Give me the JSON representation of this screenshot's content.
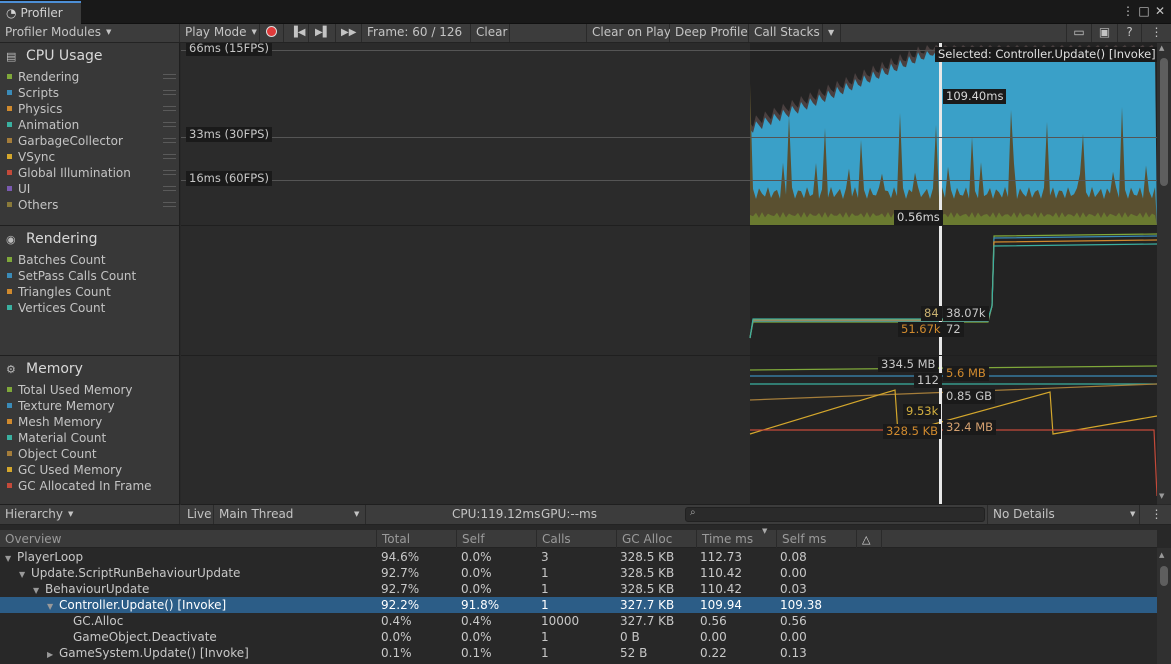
{
  "window": {
    "tab_title": "Profiler"
  },
  "toolbar": {
    "modules": "Profiler Modules",
    "play_mode": "Play Mode",
    "frame": "Frame: 60 / 126",
    "clear": "Clear",
    "clear_on_play": "Clear on Play",
    "deep_profile": "Deep Profile",
    "call_stacks": "Call Stacks"
  },
  "cpu": {
    "title": "CPU Usage",
    "legend": [
      {
        "label": "Rendering",
        "color": "#7fa83a"
      },
      {
        "label": "Scripts",
        "color": "#3a8bb8"
      },
      {
        "label": "Physics",
        "color": "#d08a2e"
      },
      {
        "label": "Animation",
        "color": "#3ab0a0"
      },
      {
        "label": "GarbageCollector",
        "color": "#a57d3a"
      },
      {
        "label": "VSync",
        "color": "#d4a72c"
      },
      {
        "label": "Global Illumination",
        "color": "#c44a3a"
      },
      {
        "label": "UI",
        "color": "#7a5ab0"
      },
      {
        "label": "Others",
        "color": "#8a7a3a"
      }
    ],
    "guides": [
      "66ms (15FPS)",
      "33ms (30FPS)",
      "16ms (60FPS)"
    ],
    "selected": "Selected: Controller.Update() [Invoke]",
    "value_top": "109.40ms",
    "value_bottom": "0.56ms"
  },
  "rendering": {
    "title": "Rendering",
    "legend": [
      {
        "label": "Batches Count",
        "color": "#7fa83a"
      },
      {
        "label": "SetPass Calls Count",
        "color": "#3a8bb8"
      },
      {
        "label": "Triangles Count",
        "color": "#d08a2e"
      },
      {
        "label": "Vertices Count",
        "color": "#3ab0a0"
      }
    ],
    "values": [
      "84",
      "51.67k",
      "38.07k",
      "72"
    ]
  },
  "memory": {
    "title": "Memory",
    "legend": [
      {
        "label": "Total Used Memory",
        "color": "#7fa83a"
      },
      {
        "label": "Texture Memory",
        "color": "#3a8bb8"
      },
      {
        "label": "Mesh Memory",
        "color": "#d08a2e"
      },
      {
        "label": "Material Count",
        "color": "#3ab0a0"
      },
      {
        "label": "Object Count",
        "color": "#a57d3a"
      },
      {
        "label": "GC Used Memory",
        "color": "#d4a72c"
      },
      {
        "label": "GC Allocated In Frame",
        "color": "#c44a3a"
      }
    ],
    "values": [
      "334.5 MB",
      "112",
      "5.6 MB",
      "0.85 GB",
      "9.53k",
      "328.5 KB",
      "32.4 MB"
    ]
  },
  "hierarchy_bar": {
    "view": "Hierarchy",
    "live": "Live",
    "thread": "Main Thread",
    "cpu": "CPU:119.12ms",
    "gpu": "GPU:--ms",
    "details": "No Details"
  },
  "columns": [
    "Overview",
    "Total",
    "Self",
    "Calls",
    "GC Alloc",
    "Time ms",
    "Self ms"
  ],
  "rows": [
    {
      "name": "PlayerLoop",
      "indent": 0,
      "tri": "▼",
      "total": "94.6%",
      "self": "0.0%",
      "calls": "3",
      "gc": "328.5 KB",
      "time": "112.73",
      "selfms": "0.08"
    },
    {
      "name": "Update.ScriptRunBehaviourUpdate",
      "indent": 1,
      "tri": "▼",
      "total": "92.7%",
      "self": "0.0%",
      "calls": "1",
      "gc": "328.5 KB",
      "time": "110.42",
      "selfms": "0.00"
    },
    {
      "name": "BehaviourUpdate",
      "indent": 2,
      "tri": "▼",
      "total": "92.7%",
      "self": "0.0%",
      "calls": "1",
      "gc": "328.5 KB",
      "time": "110.42",
      "selfms": "0.03"
    },
    {
      "name": "Controller.Update() [Invoke]",
      "indent": 3,
      "tri": "▼",
      "total": "92.2%",
      "self": "91.8%",
      "calls": "1",
      "gc": "327.7 KB",
      "time": "109.94",
      "selfms": "109.38",
      "selected": true
    },
    {
      "name": "GC.Alloc",
      "indent": 4,
      "tri": "",
      "total": "0.4%",
      "self": "0.4%",
      "calls": "10000",
      "gc": "327.7 KB",
      "time": "0.56",
      "selfms": "0.56"
    },
    {
      "name": "GameObject.Deactivate",
      "indent": 4,
      "tri": "",
      "total": "0.0%",
      "self": "0.0%",
      "calls": "1",
      "gc": "0 B",
      "time": "0.00",
      "selfms": "0.00"
    },
    {
      "name": "GameSystem.Update() [Invoke]",
      "indent": 3,
      "tri": "▶",
      "total": "0.1%",
      "self": "0.1%",
      "calls": "1",
      "gc": "52 B",
      "time": "0.22",
      "selfms": "0.13"
    }
  ]
}
